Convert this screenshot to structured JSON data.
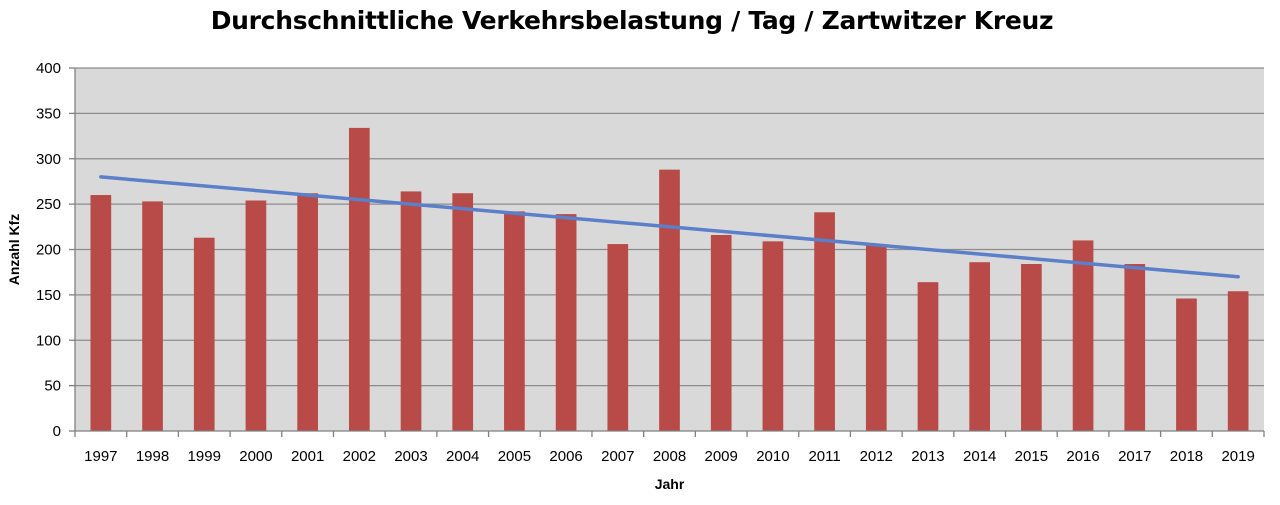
{
  "chart_data": {
    "type": "bar",
    "title": "Durchschnittliche Verkehrsbelastung / Tag / Zartwitzer Kreuz",
    "xlabel": "Jahr",
    "ylabel": "Anzahl Kfz",
    "ylim": [
      0,
      400
    ],
    "yticks": [
      0,
      50,
      100,
      150,
      200,
      250,
      300,
      350,
      400
    ],
    "grid": true,
    "categories": [
      "1997",
      "1998",
      "1999",
      "2000",
      "2001",
      "2002",
      "2003",
      "2004",
      "2005",
      "2006",
      "2007",
      "2008",
      "2009",
      "2010",
      "2011",
      "2012",
      "2013",
      "2014",
      "2015",
      "2016",
      "2017",
      "2018",
      "2019"
    ],
    "values": [
      260,
      253,
      213,
      254,
      262,
      334,
      264,
      262,
      242,
      239,
      206,
      288,
      216,
      209,
      241,
      205,
      164,
      186,
      184,
      210,
      184,
      146,
      154
    ],
    "trendline": {
      "type": "linear",
      "start": 280,
      "end": 170
    },
    "colors": {
      "bar": "#b84a47",
      "trend": "#5b7fc8",
      "plot_background": "#d9d9d9",
      "grid": "#8c8c8c"
    }
  }
}
